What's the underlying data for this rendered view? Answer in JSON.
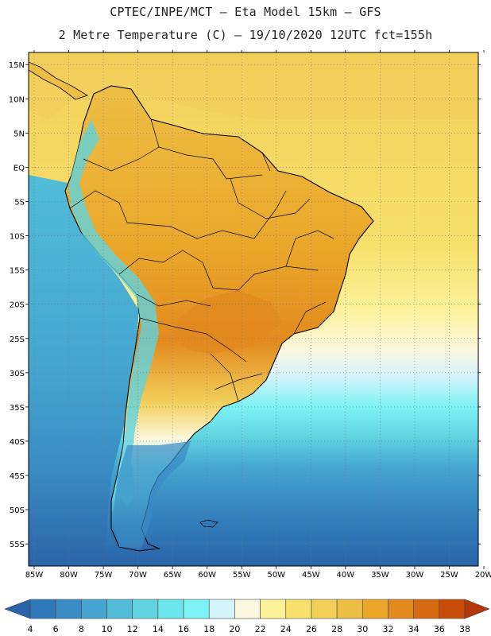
{
  "header": {
    "line1": "CPTEC/INPE/MCT –   Eta Model 15km – GFS",
    "line2": "2 Metre Temperature (C) – 19/10/2020 12UTC fct=155h"
  },
  "map": {
    "region": "South America",
    "lon_range": [
      -85,
      -20
    ],
    "lat_range": [
      -58,
      17
    ],
    "lon_labels": [
      "85W",
      "80W",
      "75W",
      "70W",
      "65W",
      "60W",
      "55W",
      "50W",
      "45W",
      "40W",
      "35W",
      "30W",
      "25W",
      "20W"
    ],
    "lat_labels": [
      "15N",
      "10N",
      "5N",
      "EQ",
      "5S",
      "10S",
      "15S",
      "20S",
      "25S",
      "30S",
      "35S",
      "40S",
      "45S",
      "50S",
      "55S"
    ]
  },
  "colorbar": {
    "labels": [
      "4",
      "6",
      "8",
      "10",
      "12",
      "14",
      "16",
      "18",
      "20",
      "22",
      "24",
      "26",
      "28",
      "30",
      "32",
      "34",
      "36",
      "38"
    ],
    "colors": [
      "#2a64a8",
      "#3079b8",
      "#3a8cc4",
      "#45a5d0",
      "#52bcd8",
      "#5fd3e0",
      "#6ae6ec",
      "#7df2f5",
      "#d4f3fa",
      "#fcf7df",
      "#fdf29a",
      "#f7e06c",
      "#f2cf5a",
      "#edbe44",
      "#eaa72a",
      "#e28a1e",
      "#d66a12",
      "#c84c0a",
      "#b5380a"
    ]
  }
}
